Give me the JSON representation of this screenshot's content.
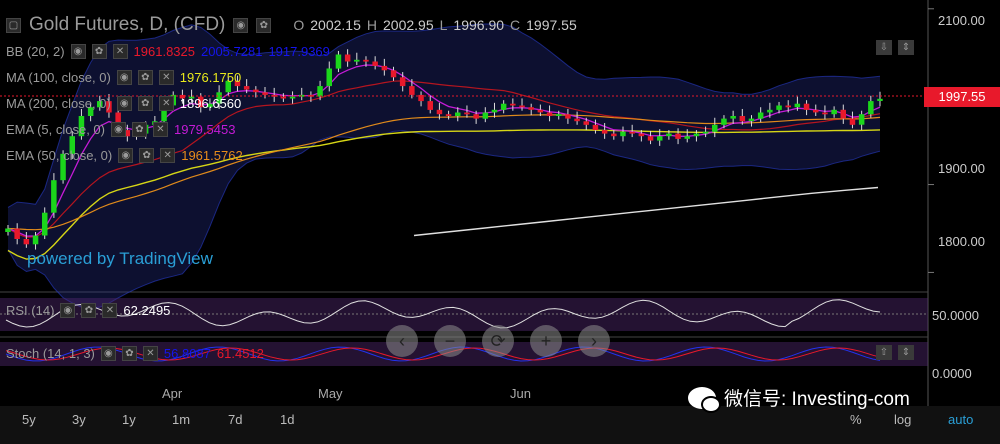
{
  "header": {
    "title": "Gold Futures, D, (CFD)",
    "ohlc": [
      {
        "key": "O",
        "value": "2002.15"
      },
      {
        "key": "H",
        "value": "2002.95"
      },
      {
        "key": "L",
        "value": "1996.90"
      },
      {
        "key": "C",
        "value": "1997.55"
      }
    ]
  },
  "indicators": [
    {
      "name": "BB (20, 2)",
      "values": [
        {
          "v": "1961.8325",
          "color": "#e8192b"
        },
        {
          "v": "2005.7281",
          "color": "#1515ee"
        },
        {
          "v": "1917.9369",
          "color": "#1515ee"
        }
      ]
    },
    {
      "name": "MA (100, close, 0)",
      "values": [
        {
          "v": "1976.1750",
          "color": "#e8e81b"
        }
      ]
    },
    {
      "name": "MA (200, close, 0)",
      "values": [
        {
          "v": "1896.6560",
          "color": "#ffffff"
        }
      ]
    },
    {
      "name": "EMA (5, close, 0)",
      "values": [
        {
          "v": "1979.5453",
          "color": "#c41bd6"
        }
      ]
    },
    {
      "name": "EMA (50, close, 0)",
      "values": [
        {
          "v": "1961.5762",
          "color": "#e88c1b"
        }
      ]
    }
  ],
  "powered_by": "powered by TradingView",
  "last_price": "1997.55",
  "rsi": {
    "name": "RSI (14)",
    "value": "62.2495"
  },
  "stoch": {
    "name": "Stoch (14, 1, 3)",
    "k": "56.8087",
    "d": "61.4512"
  },
  "nav_buttons": [
    "‹",
    "−",
    "⟳",
    "+",
    "›"
  ],
  "range_buttons": [
    "5y",
    "3y",
    "1y",
    "1m",
    "7d",
    "1d"
  ],
  "corner_buttons": [
    "%",
    "log",
    "auto"
  ],
  "watermark": "微信号: Investing-com",
  "chart_data": {
    "type": "candlestick",
    "x_axis": {
      "labels": [
        "Apr",
        "May",
        "Jun"
      ]
    },
    "y_axis": {
      "ticks": [
        "2100.00",
        "1900.00",
        "1800.00"
      ],
      "range": [
        1780,
        2110
      ]
    },
    "rsi_axis": {
      "ticks": [
        "50.0000"
      ]
    },
    "stoch_axis": {
      "ticks": [
        "0.0000"
      ]
    },
    "close_series": [
      1850,
      1838,
      1832,
      1842,
      1868,
      1905,
      1935,
      1955,
      1978,
      1988,
      1995,
      1982,
      1962,
      1955,
      1958,
      1968,
      1972,
      1990,
      2002,
      1998,
      2000,
      1988,
      1992,
      2005,
      2018,
      2012,
      2008,
      2005,
      2002,
      2000,
      1998,
      2000,
      2002,
      2000,
      2012,
      2032,
      2048,
      2040,
      2042,
      2040,
      2035,
      2030,
      2022,
      2012,
      2002,
      1995,
      1985,
      1980,
      1978,
      1982,
      1980,
      1975,
      1982,
      1985,
      1992,
      1990,
      1988,
      1985,
      1982,
      1978,
      1980,
      1975,
      1972,
      1968,
      1962,
      1958,
      1955,
      1960,
      1958,
      1955,
      1950,
      1955,
      1958,
      1952,
      1955,
      1958,
      1960,
      1968,
      1975,
      1978,
      1972,
      1975,
      1982,
      1985,
      1990,
      1988,
      1992,
      1985,
      1982,
      1980,
      1985,
      1975,
      1968,
      1980,
      1995,
      1997.55
    ],
    "ma200_series": [
      1842,
      1846,
      1850,
      1854,
      1858,
      1862,
      1866,
      1870,
      1874,
      1878,
      1882,
      1886,
      1890,
      1893.5,
      1896.6
    ],
    "series": [
      {
        "name": "BB (20, 2)"
      },
      {
        "name": "MA (100, close, 0)"
      },
      {
        "name": "MA (200, close, 0)"
      },
      {
        "name": "EMA (5, close, 0)"
      },
      {
        "name": "EMA (50, close, 0)"
      }
    ]
  }
}
